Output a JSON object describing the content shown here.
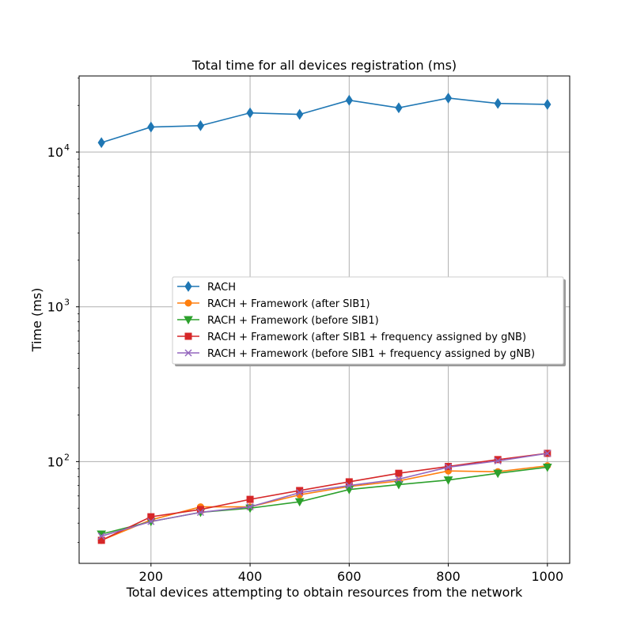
{
  "chart_data": {
    "type": "line",
    "title": "Total time for all devices registration (ms)",
    "xlabel": "Total devices attempting to obtain resources from the network",
    "ylabel": "Time (ms)",
    "yscale": "log",
    "xlim": [
      55,
      1045
    ],
    "ylim": [
      22,
      31000
    ],
    "grid": true,
    "legend_position": "center-right",
    "x_ticks": [
      200,
      400,
      600,
      800,
      1000
    ],
    "y_ticks": [
      {
        "value": 100,
        "base": "10",
        "exp": "2"
      },
      {
        "value": 1000,
        "base": "10",
        "exp": "3"
      },
      {
        "value": 10000,
        "base": "10",
        "exp": "4"
      }
    ],
    "x": [
      100,
      200,
      300,
      400,
      500,
      600,
      700,
      800,
      900,
      1000
    ],
    "series": [
      {
        "name": "RACH",
        "color": "#1f77b4",
        "marker": "diamond",
        "values": [
          11500,
          14500,
          14800,
          17900,
          17500,
          21600,
          19300,
          22300,
          20600,
          20300
        ]
      },
      {
        "name": "RACH + Framework (after SIB1)",
        "color": "#ff7f0e",
        "marker": "circle",
        "values": [
          31,
          42,
          51,
          51,
          61,
          69,
          75,
          87,
          86,
          94
        ]
      },
      {
        "name": "RACH + Framework (before SIB1)",
        "color": "#2ca02c",
        "marker": "triangle-down",
        "values": [
          34,
          41,
          47,
          50,
          55,
          66,
          71,
          76,
          84,
          92
        ]
      },
      {
        "name": "RACH + Framework (after SIB1 + frequency assigned by gNB)",
        "color": "#d62728",
        "marker": "square",
        "values": [
          31,
          44,
          49,
          57,
          65,
          74,
          84,
          93,
          103,
          113
        ]
      },
      {
        "name": "RACH + Framework (before SIB1 + frequency assigned by gNB)",
        "color": "#9467bd",
        "marker": "x",
        "values": [
          33,
          41,
          47,
          51,
          63,
          70,
          77,
          92,
          101,
          113
        ]
      }
    ]
  }
}
